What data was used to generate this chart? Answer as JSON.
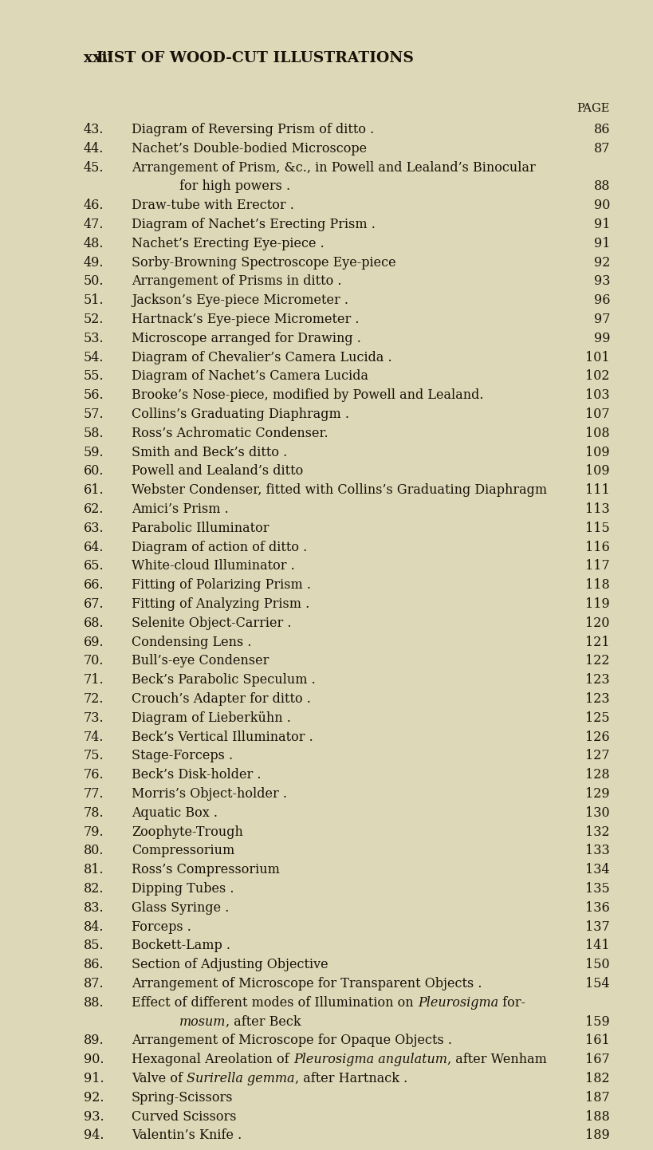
{
  "bg_color": "#ddd9b8",
  "text_color": "#1a1008",
  "page_label": "xxii",
  "header": "LIST OF WOOD-CUT ILLUSTRATIONS",
  "page_col_label": "PAGE",
  "fig_width": 8.0,
  "fig_height": 14.15,
  "dpi": 100,
  "entries": [
    {
      "num": "43.",
      "text": "Diagram of Reversing Prism of ditto .",
      "page": "86",
      "indent": false,
      "parts": null
    },
    {
      "num": "44.",
      "text": "Nachet’s Double-bodied Microscope",
      "page": "87",
      "indent": false,
      "parts": null
    },
    {
      "num": "45.",
      "text": "Arrangement of Prism, &c., in Powell and Lealand’s Binocular",
      "page": null,
      "indent": false,
      "parts": null
    },
    {
      "num": "",
      "text": "for high powers .",
      "page": "88",
      "indent": true,
      "parts": null
    },
    {
      "num": "46.",
      "text": "Draw-tube with Erector .",
      "page": "90",
      "indent": false,
      "parts": null
    },
    {
      "num": "47.",
      "text": "Diagram of Nachet’s Erecting Prism .",
      "page": "91",
      "indent": false,
      "parts": null
    },
    {
      "num": "48.",
      "text": "Nachet’s Erecting Eye-piece .",
      "page": "91",
      "indent": false,
      "parts": null
    },
    {
      "num": "49.",
      "text": "Sorby-Browning Spectroscope Eye-piece",
      "page": "92",
      "indent": false,
      "parts": null
    },
    {
      "num": "50.",
      "text": "Arrangement of Prisms in ditto .",
      "page": "93",
      "indent": false,
      "parts": null
    },
    {
      "num": "51.",
      "text": "Jackson’s Eye-piece Micrometer .",
      "page": "96",
      "indent": false,
      "parts": null
    },
    {
      "num": "52.",
      "text": "Hartnack’s Eye-piece Micrometer .",
      "page": "97",
      "indent": false,
      "parts": null
    },
    {
      "num": "53.",
      "text": "Microscope arranged for Drawing .",
      "page": "99",
      "indent": false,
      "parts": null
    },
    {
      "num": "54.",
      "text": "Diagram of Chevalier’s Camera Lucida .",
      "page": "101",
      "indent": false,
      "parts": null
    },
    {
      "num": "55.",
      "text": "Diagram of Nachet’s Camera Lucida",
      "page": "102",
      "indent": false,
      "parts": null
    },
    {
      "num": "56.",
      "text": "Brooke’s Nose-piece, modified by Powell and Lealand.",
      "page": "103",
      "indent": false,
      "parts": null
    },
    {
      "num": "57.",
      "text": "Collins’s Graduating Diaphragm .",
      "page": "107",
      "indent": false,
      "parts": null
    },
    {
      "num": "58.",
      "text": "Ross’s Achromatic Condenser.",
      "page": "108",
      "indent": false,
      "parts": null
    },
    {
      "num": "59.",
      "text": "Smith and Beck’s ditto .",
      "page": "109",
      "indent": false,
      "parts": null
    },
    {
      "num": "60.",
      "text": "Powell and Lealand’s ditto",
      "page": "109",
      "indent": false,
      "parts": null
    },
    {
      "num": "61.",
      "text": "Webster Condenser, fitted with Collins’s Graduating Diaphragm",
      "page": "111",
      "indent": false,
      "parts": null
    },
    {
      "num": "62.",
      "text": "Amici’s Prism .",
      "page": "113",
      "indent": false,
      "parts": null
    },
    {
      "num": "63.",
      "text": "Parabolic Illuminator",
      "page": "115",
      "indent": false,
      "parts": null
    },
    {
      "num": "64.",
      "text": "Diagram of action of ditto .",
      "page": "116",
      "indent": false,
      "parts": null
    },
    {
      "num": "65.",
      "text": "White-cloud Illuminator .",
      "page": "117",
      "indent": false,
      "parts": null
    },
    {
      "num": "66.",
      "text": "Fitting of Polarizing Prism .",
      "page": "118",
      "indent": false,
      "parts": null
    },
    {
      "num": "67.",
      "text": "Fitting of Analyzing Prism .",
      "page": "119",
      "indent": false,
      "parts": null
    },
    {
      "num": "68.",
      "text": "Selenite Object-Carrier .",
      "page": "120",
      "indent": false,
      "parts": null
    },
    {
      "num": "69.",
      "text": "Condensing Lens .",
      "page": "121",
      "indent": false,
      "parts": null
    },
    {
      "num": "70.",
      "text": "Bull’s-eye Condenser",
      "page": "122",
      "indent": false,
      "parts": null
    },
    {
      "num": "71.",
      "text": "Beck’s Parabolic Speculum .",
      "page": "123",
      "indent": false,
      "parts": null
    },
    {
      "num": "72.",
      "text": "Crouch’s Adapter for ditto .",
      "page": "123",
      "indent": false,
      "parts": null
    },
    {
      "num": "73.",
      "text": "Diagram of Lieberkühn .",
      "page": "125",
      "indent": false,
      "parts": null
    },
    {
      "num": "74.",
      "text": "Beck’s Vertical Illuminator .",
      "page": "126",
      "indent": false,
      "parts": null
    },
    {
      "num": "75.",
      "text": "Stage-Forceps .",
      "page": "127",
      "indent": false,
      "parts": null
    },
    {
      "num": "76.",
      "text": "Beck’s Disk-holder .",
      "page": "128",
      "indent": false,
      "parts": null
    },
    {
      "num": "77.",
      "text": "Morris’s Object-holder .",
      "page": "129",
      "indent": false,
      "parts": null
    },
    {
      "num": "78.",
      "text": "Aquatic Box .",
      "page": "130",
      "indent": false,
      "parts": null
    },
    {
      "num": "79.",
      "text": "Zoophyte-Trough",
      "page": "132",
      "indent": false,
      "parts": null
    },
    {
      "num": "80.",
      "text": "Compressorium",
      "page": "133",
      "indent": false,
      "parts": null
    },
    {
      "num": "81.",
      "text": "Ross’s Compressorium",
      "page": "134",
      "indent": false,
      "parts": null
    },
    {
      "num": "82.",
      "text": "Dipping Tubes .",
      "page": "135",
      "indent": false,
      "parts": null
    },
    {
      "num": "83.",
      "text": "Glass Syringe .",
      "page": "136",
      "indent": false,
      "parts": null
    },
    {
      "num": "84.",
      "text": "Forceps .",
      "page": "137",
      "indent": false,
      "parts": null
    },
    {
      "num": "85.",
      "text": "Bockett-Lamp .",
      "page": "141",
      "indent": false,
      "parts": null
    },
    {
      "num": "86.",
      "text": "Section of Adjusting Objective",
      "page": "150",
      "indent": false,
      "parts": null
    },
    {
      "num": "87.",
      "text": "Arrangement of Microscope for Transparent Objects .",
      "page": "154",
      "indent": false,
      "parts": null
    },
    {
      "num": "88.",
      "text": "Effect of different modes of Illumination on ",
      "page": null,
      "indent": false,
      "parts": [
        [
          "Effect of different modes of Illumination on ",
          false
        ],
        [
          "Pleurosigma",
          true
        ],
        [
          " for-",
          false
        ]
      ]
    },
    {
      "num": "",
      "text": "mosum, after Beck",
      "page": "159",
      "indent": true,
      "parts": [
        [
          "mosum",
          true
        ],
        [
          ", after Beck",
          false
        ]
      ]
    },
    {
      "num": "89.",
      "text": "Arrangement of Microscope for Opaque Objects .",
      "page": "161",
      "indent": false,
      "parts": null
    },
    {
      "num": "90.",
      "text": "Hexagonal Areolation of Pleurosigma angulatum, after Wenham",
      "page": "167",
      "indent": false,
      "parts": [
        [
          "Hexagonal Areolation of ",
          false
        ],
        [
          "Pleurosigma angulatum",
          true
        ],
        [
          ", after Wenham",
          false
        ]
      ]
    },
    {
      "num": "91.",
      "text": "Valve of Surirella gemma, after Hartnack .",
      "page": "182",
      "indent": false,
      "parts": [
        [
          "Valve of ",
          false
        ],
        [
          "Surirella gemma",
          true
        ],
        [
          ", after Hartnack .",
          false
        ]
      ]
    },
    {
      "num": "92.",
      "text": "Spring-Scissors",
      "page": "187",
      "indent": false,
      "parts": null
    },
    {
      "num": "93.",
      "text": "Curved Scissors",
      "page": "188",
      "indent": false,
      "parts": null
    },
    {
      "num": "94.",
      "text": "Valentin’s Knife .",
      "page": "189",
      "indent": false,
      "parts": null
    }
  ]
}
